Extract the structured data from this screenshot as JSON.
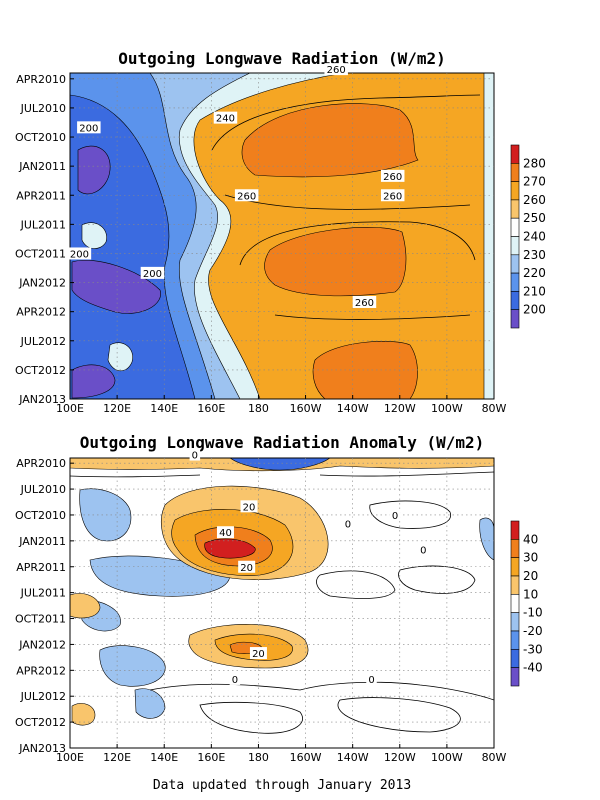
{
  "footer": "Data updated through January 2013",
  "colors": {
    "olr": [
      "#6a4fc8",
      "#3b6be0",
      "#5b93ec",
      "#9dc3f0",
      "#dff3f6",
      "#ffffff",
      "#f9c56c",
      "#f5a623",
      "#f07f1c",
      "#d21f1f"
    ],
    "anomaly": [
      "#6a4fc8",
      "#3b6be0",
      "#5b93ec",
      "#9dc3f0",
      "#ffffff",
      "#f9c56c",
      "#f5a623",
      "#f07f1c",
      "#d21f1f"
    ]
  },
  "chart_data": [
    {
      "type": "heatmap",
      "title": "Outgoing Longwave Radiation (W/m2)",
      "x_ticks": [
        "100E",
        "120E",
        "140E",
        "160E",
        "180",
        "160W",
        "140W",
        "120W",
        "100W",
        "80W"
      ],
      "y_ticks": [
        "APR2010",
        "JUL2010",
        "OCT2010",
        "JAN2011",
        "APR2011",
        "JUL2011",
        "OCT2011",
        "JAN2012",
        "APR2012",
        "JUL2012",
        "OCT2012",
        "JAN2013"
      ],
      "colorbar_levels": [
        200,
        210,
        220,
        230,
        240,
        250,
        260,
        270,
        280
      ],
      "contour_labels": [
        {
          "text": "260",
          "x": "147W",
          "t": "2010-03"
        },
        {
          "text": "240",
          "x": "166E",
          "t": "2010-08"
        },
        {
          "text": "200",
          "x": "108E",
          "t": "2010-09"
        },
        {
          "text": "260",
          "x": "123W",
          "t": "2011-02"
        },
        {
          "text": "260",
          "x": "175E",
          "t": "2011-04"
        },
        {
          "text": "260",
          "x": "123W",
          "t": "2011-04"
        },
        {
          "text": "200",
          "x": "104E",
          "t": "2011-10"
        },
        {
          "text": "200",
          "x": "135E",
          "t": "2011-12"
        },
        {
          "text": "260",
          "x": "135W",
          "t": "2012-03"
        }
      ],
      "description_values": {
        "west_pacific_min": 200,
        "central_east_pacific_max": 270,
        "peak_period": [
          "OCT2010",
          "OCT2011",
          "OCT2012"
        ]
      }
    },
    {
      "type": "heatmap",
      "title": "Outgoing Longwave Radiation Anomaly (W/m2)",
      "x_ticks": [
        "100E",
        "120E",
        "140E",
        "160E",
        "180",
        "160W",
        "140W",
        "120W",
        "100W",
        "80W"
      ],
      "y_ticks": [
        "APR2010",
        "JUL2010",
        "OCT2010",
        "JAN2011",
        "APR2011",
        "JUL2011",
        "OCT2011",
        "JAN2012",
        "APR2012",
        "JUL2012",
        "OCT2012",
        "JAN2013"
      ],
      "colorbar_levels": [
        -40,
        -30,
        -20,
        -10,
        10,
        20,
        30,
        40
      ],
      "contour_labels": [
        {
          "text": "0",
          "x": "153E",
          "t": "2010-03"
        },
        {
          "text": "20",
          "x": "176E",
          "t": "2010-09"
        },
        {
          "text": "40",
          "x": "166E",
          "t": "2010-12"
        },
        {
          "text": "20",
          "x": "175E",
          "t": "2011-04"
        },
        {
          "text": "0",
          "x": "122W",
          "t": "2010-10"
        },
        {
          "text": "0",
          "x": "142W",
          "t": "2010-11"
        },
        {
          "text": "0",
          "x": "110W",
          "t": "2011-02"
        },
        {
          "text": "20",
          "x": "180",
          "t": "2012-02"
        },
        {
          "text": "0",
          "x": "170E",
          "t": "2012-05"
        },
        {
          "text": "0",
          "x": "132W",
          "t": "2012-05"
        }
      ],
      "description_values": {
        "positive_anomaly_peak": 40,
        "positive_anomaly_peak_period": "JAN2011",
        "negative_anomaly_region": "west Pacific, -10 to -20"
      }
    }
  ]
}
